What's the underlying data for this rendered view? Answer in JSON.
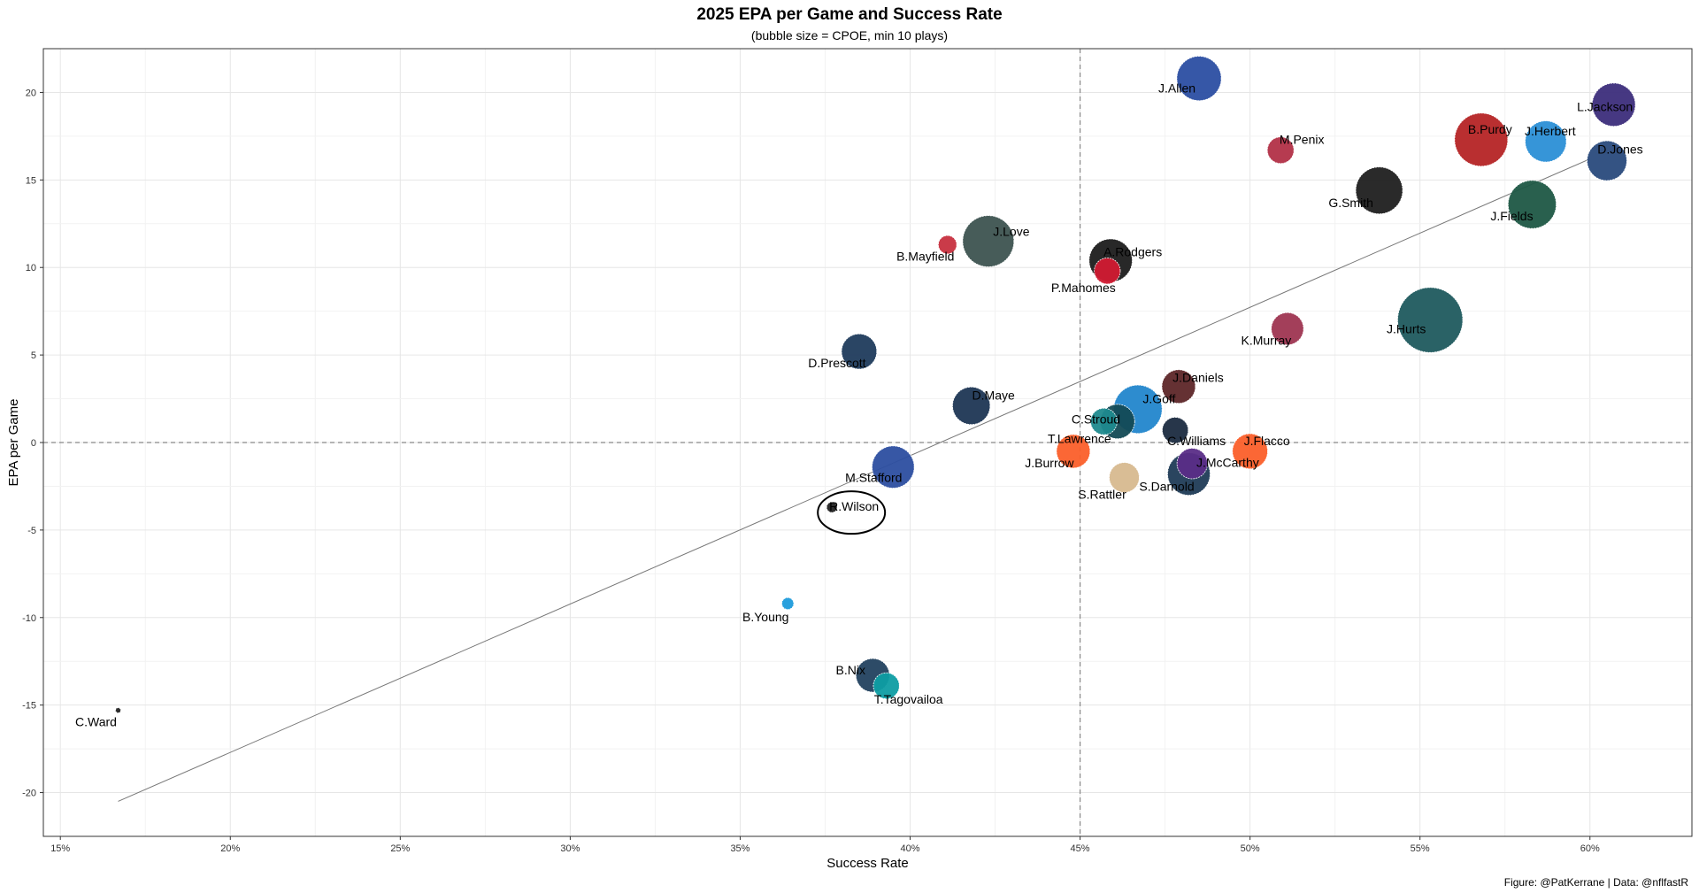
{
  "chart_data": {
    "type": "scatter",
    "title": "2025 EPA per Game and Success Rate",
    "subtitle": "(bubble size = CPOE, min 10 plays)",
    "xlabel": "Success Rate",
    "ylabel": "EPA per Game",
    "caption": "Figure: @PatKerrane | Data: @nflfastR",
    "xlim": [
      0.145,
      0.63
    ],
    "ylim": [
      -22.5,
      22.5
    ],
    "x_ticks": [
      0.15,
      0.2,
      0.25,
      0.3,
      0.35,
      0.4,
      0.45,
      0.5,
      0.55,
      0.6
    ],
    "x_tick_labels": [
      "15%",
      "20%",
      "25%",
      "30%",
      "35%",
      "40%",
      "45%",
      "50%",
      "55%",
      "60%"
    ],
    "y_ticks": [
      -20,
      -15,
      -10,
      -5,
      0,
      5,
      10,
      15,
      20
    ],
    "y_tick_labels": [
      "-20",
      "-15",
      "-10",
      "-5",
      "0",
      "5",
      "10",
      "15",
      "20"
    ],
    "reference_lines": {
      "x": 0.45,
      "y": 0
    },
    "trend_line": {
      "x": [
        0.167,
        0.6
      ],
      "y": [
        -20.5,
        16.2
      ]
    },
    "grid": true,
    "legend": "none",
    "highlight": "R.Wilson",
    "points": [
      {
        "name": "J.Allen",
        "x": 0.485,
        "y": 20.8,
        "size": 0.7,
        "color": "#2b4ea2"
      },
      {
        "name": "L.Jackson",
        "x": 0.607,
        "y": 19.3,
        "size": 0.66,
        "color": "#3c2d7b"
      },
      {
        "name": "B.Purdy",
        "x": 0.568,
        "y": 17.3,
        "size": 1.0,
        "color": "#b52425"
      },
      {
        "name": "J.Herbert",
        "x": 0.587,
        "y": 17.2,
        "size": 0.6,
        "color": "#2b8fd6"
      },
      {
        "name": "M.Penix",
        "x": 0.509,
        "y": 16.7,
        "size": 0.25,
        "color": "#b23047"
      },
      {
        "name": "D.Jones",
        "x": 0.605,
        "y": 16.1,
        "size": 0.56,
        "color": "#294a7c"
      },
      {
        "name": "G.Smith",
        "x": 0.538,
        "y": 14.4,
        "size": 0.78,
        "color": "#1f1f1f"
      },
      {
        "name": "J.Fields",
        "x": 0.583,
        "y": 13.6,
        "size": 0.82,
        "color": "#1d5744"
      },
      {
        "name": "J.Love",
        "x": 0.423,
        "y": 11.5,
        "size": 0.93,
        "color": "#3d5350"
      },
      {
        "name": "B.Mayfield",
        "x": 0.411,
        "y": 11.3,
        "size": 0.12,
        "color": "#c7303f"
      },
      {
        "name": "A.Rodgers",
        "x": 0.459,
        "y": 10.4,
        "size": 0.66,
        "color": "#1c1c1c"
      },
      {
        "name": "P.Mahomes",
        "x": 0.458,
        "y": 9.8,
        "size": 0.24,
        "color": "#d11a32"
      },
      {
        "name": "K.Murray",
        "x": 0.511,
        "y": 6.5,
        "size": 0.37,
        "color": "#9e3551"
      },
      {
        "name": "J.Hurts",
        "x": 0.553,
        "y": 7.0,
        "size": 1.5,
        "color": "#1f5a5e"
      },
      {
        "name": "D.Prescott",
        "x": 0.385,
        "y": 5.2,
        "size": 0.44,
        "color": "#1f3b5c"
      },
      {
        "name": "J.Daniels",
        "x": 0.479,
        "y": 3.2,
        "size": 0.4,
        "color": "#5d2628"
      },
      {
        "name": "D.Maye",
        "x": 0.418,
        "y": 2.1,
        "size": 0.5,
        "color": "#1d3654"
      },
      {
        "name": "J.Goff",
        "x": 0.467,
        "y": 1.9,
        "size": 0.83,
        "color": "#2286cc"
      },
      {
        "name": "C.Stroud",
        "x": 0.457,
        "y": 1.2,
        "size": 0.25,
        "color": "#1f8a8e"
      },
      {
        "name": "T.Lawrence",
        "x": 0.461,
        "y": 1.2,
        "size": 0.42,
        "color": "#134a55"
      },
      {
        "name": "C.Williams",
        "x": 0.478,
        "y": 0.7,
        "size": 0.24,
        "color": "#1b2b40"
      },
      {
        "name": "J.Burrow",
        "x": 0.448,
        "y": -0.5,
        "size": 0.4,
        "color": "#fb5f2a"
      },
      {
        "name": "J.Flacco",
        "x": 0.5,
        "y": -0.5,
        "size": 0.44,
        "color": "#fb5f2a"
      },
      {
        "name": "S.Darnold",
        "x": 0.482,
        "y": -1.8,
        "size": 0.64,
        "color": "#1f3b56"
      },
      {
        "name": "J.McCarthy",
        "x": 0.483,
        "y": -1.2,
        "size": 0.33,
        "color": "#5a2d87"
      },
      {
        "name": "S.Rattler",
        "x": 0.463,
        "y": -2.0,
        "size": 0.32,
        "color": "#d7b98f"
      },
      {
        "name": "M.Stafford",
        "x": 0.395,
        "y": -1.4,
        "size": 0.63,
        "color": "#2c4ea0"
      },
      {
        "name": "R.Wilson",
        "x": 0.377,
        "y": -3.7,
        "size": 0.04,
        "color": "#222222"
      },
      {
        "name": "B.Young",
        "x": 0.364,
        "y": -9.2,
        "size": 0.05,
        "color": "#1e9bdb"
      },
      {
        "name": "B.Nix",
        "x": 0.389,
        "y": -13.3,
        "size": 0.4,
        "color": "#22415f"
      },
      {
        "name": "T.Tagovailoa",
        "x": 0.393,
        "y": -13.9,
        "size": 0.24,
        "color": "#0e9da3"
      },
      {
        "name": "C.Ward",
        "x": 0.167,
        "y": -15.3,
        "size": 0.01,
        "color": "#222222"
      }
    ]
  }
}
